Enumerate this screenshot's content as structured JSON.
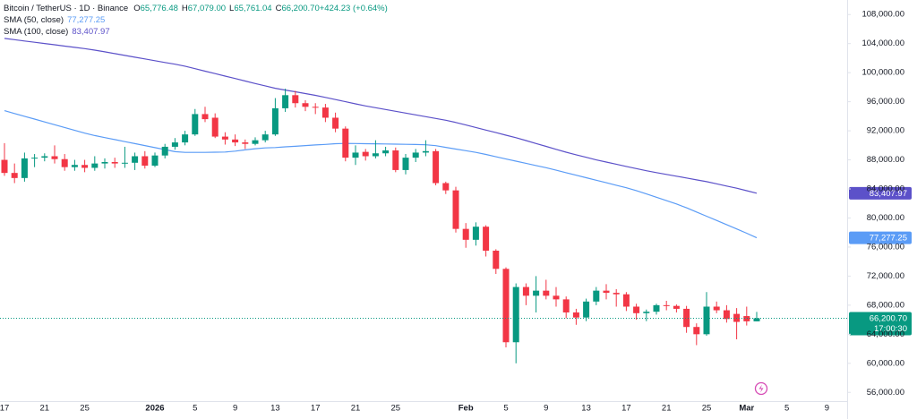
{
  "chart_data": {
    "type": "candlestick",
    "title": "Bitcoin / TetherUS · 1D · Binance",
    "ohlc": [
      [
        "O",
        "65,776.48"
      ],
      [
        "H",
        "67,079.00"
      ],
      [
        "L",
        "65,761.04"
      ],
      [
        "C",
        "66,200.70"
      ],
      [
        "",
        "+424.23 (+0.64%)"
      ]
    ],
    "categories": [
      "17",
      null,
      null,
      null,
      "21",
      null,
      null,
      null,
      "25",
      null,
      null,
      null,
      null,
      null,
      null,
      "2026",
      null,
      null,
      null,
      "5",
      null,
      null,
      null,
      "9",
      null,
      null,
      null,
      "13",
      null,
      null,
      null,
      "17",
      null,
      null,
      null,
      "21",
      null,
      null,
      null,
      "25",
      null,
      null,
      null,
      null,
      null,
      null,
      "Feb",
      null,
      null,
      null,
      "5",
      null,
      null,
      null,
      "9",
      null,
      null,
      null,
      "13",
      null,
      null,
      null,
      "17",
      null,
      null,
      null,
      "21",
      null,
      null,
      null,
      "25",
      null,
      null,
      null,
      "Mar",
      null,
      null,
      null,
      "5",
      null,
      null,
      null,
      "9",
      null
    ],
    "open": [
      88000,
      86200,
      85500,
      88200,
      88300,
      88500,
      88100,
      87000,
      87300,
      86900,
      87500,
      87700,
      87500,
      87600,
      88500,
      87200,
      88600,
      89800,
      90400,
      91500,
      94300,
      93800,
      91200,
      90800,
      90400,
      90200,
      90700,
      91500,
      95100,
      96900,
      95800,
      95300,
      95200,
      93800,
      92300,
      88300,
      89100,
      88500,
      88900,
      89300,
      86600,
      88300,
      89000,
      89200,
      84800,
      83800,
      78500,
      77000,
      78800,
      75500,
      73000,
      62900,
      70500,
      69300,
      70000,
      69300,
      68800,
      67000,
      66300,
      68500,
      70000,
      69700,
      69500,
      67800,
      66900,
      67100,
      68000,
      67900,
      67500,
      65000,
      64000,
      67800,
      67300,
      66800,
      66500,
      65776.48,
      null,
      null,
      null,
      null,
      null,
      null,
      null,
      null
    ],
    "high": [
      90300,
      87500,
      89000,
      88800,
      88900,
      90000,
      88800,
      88000,
      88000,
      88500,
      88200,
      88300,
      89800,
      89000,
      89200,
      89000,
      90200,
      91000,
      92000,
      95000,
      95300,
      94400,
      91800,
      91500,
      90800,
      91100,
      92000,
      96500,
      97800,
      97500,
      96200,
      95800,
      95700,
      94500,
      92600,
      90000,
      89500,
      90700,
      89800,
      89700,
      88800,
      89500,
      90700,
      89500,
      85000,
      84300,
      79300,
      79400,
      79000,
      75700,
      73200,
      71000,
      71000,
      72000,
      71500,
      70500,
      69200,
      67500,
      68900,
      70500,
      70900,
      70200,
      69800,
      68200,
      67400,
      68200,
      68600,
      68100,
      67900,
      65500,
      69800,
      68500,
      68000,
      67600,
      67800,
      67079,
      null,
      null,
      null,
      null,
      null,
      null,
      null,
      null
    ],
    "low": [
      85800,
      84800,
      85000,
      87000,
      87800,
      87500,
      86500,
      86500,
      86300,
      86500,
      86800,
      86900,
      86900,
      86600,
      86800,
      87000,
      88200,
      89400,
      90000,
      91300,
      93200,
      91000,
      90100,
      89900,
      89500,
      90000,
      90400,
      91300,
      94600,
      95200,
      94700,
      94300,
      93200,
      91800,
      87800,
      87300,
      87900,
      88200,
      88500,
      86300,
      86000,
      87700,
      88500,
      84500,
      83300,
      78000,
      75900,
      76200,
      74700,
      72300,
      62200,
      60000,
      68000,
      67000,
      68800,
      67800,
      66200,
      65300,
      65800,
      68000,
      68800,
      67800,
      67200,
      66000,
      65800,
      66700,
      67300,
      67000,
      64200,
      62500,
      63800,
      66900,
      65600,
      63300,
      65200,
      65761.04,
      null,
      null,
      null,
      null,
      null,
      null,
      null,
      null
    ],
    "close": [
      86200,
      85500,
      88200,
      88300,
      88500,
      88100,
      87000,
      87300,
      86900,
      87500,
      87700,
      87500,
      87600,
      88500,
      87200,
      88600,
      89800,
      90400,
      91500,
      94300,
      93600,
      91200,
      90800,
      90400,
      90200,
      90700,
      91500,
      95100,
      96900,
      95800,
      95300,
      95200,
      93800,
      92300,
      88300,
      89000,
      88500,
      88900,
      89300,
      86600,
      88300,
      89000,
      89200,
      84800,
      83800,
      78500,
      77000,
      78800,
      75500,
      73000,
      62900,
      70500,
      69300,
      70000,
      69300,
      68800,
      67000,
      66300,
      68500,
      70000,
      69700,
      69500,
      67800,
      66900,
      67100,
      68000,
      67900,
      67500,
      65000,
      64000,
      67800,
      67300,
      66100,
      65700,
      65780,
      66200.7,
      null,
      null,
      null,
      null,
      null,
      null,
      null,
      null
    ],
    "up_color": "#089981",
    "down_color": "#f23645",
    "series": [
      {
        "name": "SMA (50, close)",
        "color": "#5b9cf6",
        "last_label": "77,277.25",
        "values": [
          94770,
          94380,
          93990,
          93610,
          93220,
          92840,
          92450,
          92060,
          91680,
          91340,
          91060,
          90790,
          90510,
          90240,
          89960,
          89680,
          89410,
          89130,
          89030,
          89030,
          89030,
          89050,
          89080,
          89200,
          89370,
          89540,
          89640,
          89700,
          89790,
          89870,
          89960,
          90050,
          90130,
          90220,
          90260,
          90250,
          90230,
          90210,
          90190,
          90160,
          90140,
          90110,
          90080,
          89950,
          89720,
          89490,
          89260,
          89030,
          88740,
          88420,
          88120,
          87820,
          87520,
          87220,
          86920,
          86580,
          86230,
          85890,
          85540,
          85200,
          84850,
          84510,
          84160,
          83770,
          83310,
          82850,
          82390,
          81930,
          81400,
          80820,
          80240,
          79660,
          79080,
          78500,
          77900,
          77277.25,
          null,
          null,
          null,
          null,
          null,
          null,
          null,
          null
        ]
      },
      {
        "name": "SMA (100, close)",
        "color": "#5c51c9",
        "last_label": "83,407.97",
        "values": [
          104720,
          104540,
          104360,
          104190,
          104010,
          103840,
          103660,
          103480,
          103310,
          103100,
          102860,
          102620,
          102370,
          102130,
          101890,
          101640,
          101400,
          101160,
          100890,
          100550,
          100210,
          99870,
          99530,
          99190,
          98850,
          98510,
          98180,
          97850,
          97610,
          97370,
          97120,
          96880,
          96600,
          96300,
          96000,
          95710,
          95420,
          95180,
          94930,
          94690,
          94440,
          94190,
          93950,
          93700,
          93450,
          93150,
          92800,
          92450,
          92100,
          91750,
          91400,
          91050,
          90650,
          90250,
          89850,
          89450,
          89050,
          88700,
          88350,
          88000,
          87700,
          87400,
          87100,
          86800,
          86500,
          86250,
          86000,
          85750,
          85500,
          85250,
          85000,
          84700,
          84400,
          84100,
          83750,
          83407.97,
          null,
          null,
          null,
          null,
          null,
          null,
          null,
          null
        ]
      }
    ],
    "last_price": {
      "value": 66200.7,
      "label": "66,200.70",
      "countdown": "17:00:30"
    },
    "ylim": [
      54800,
      110000
    ],
    "yticks": [
      {
        "value": 56000,
        "label": "56,000.00"
      },
      {
        "value": 60000,
        "label": "60,000.00"
      },
      {
        "value": 64000,
        "label": "64,000.00"
      },
      {
        "value": 68000,
        "label": "68,000.00"
      },
      {
        "value": 72000,
        "label": "72,000.00"
      },
      {
        "value": 76000,
        "label": "76,000.00"
      },
      {
        "value": 80000,
        "label": "80,000.00"
      },
      {
        "value": 84000,
        "label": "84,000.00"
      },
      {
        "value": 88000,
        "label": "88,000.00"
      },
      {
        "value": 92000,
        "label": "92,000.00"
      },
      {
        "value": 96000,
        "label": "96,000.00"
      },
      {
        "value": 100000,
        "label": "100,000.00"
      },
      {
        "value": 104000,
        "label": "104,000.00"
      },
      {
        "value": 108000,
        "label": "108,000.00"
      }
    ],
    "grid": false
  }
}
